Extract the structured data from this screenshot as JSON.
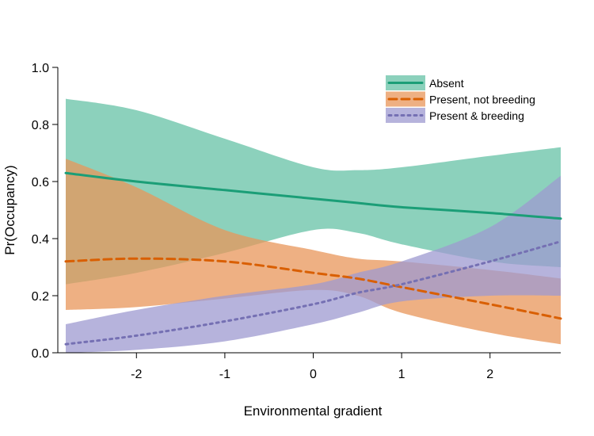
{
  "chart_data": {
    "type": "line",
    "xlabel": "Environmental gradient",
    "ylabel": "Pr(Occupancy)",
    "xlim": [
      -2.8,
      2.8
    ],
    "ylim": [
      0,
      1
    ],
    "x_ticks": [
      -2,
      -1,
      0,
      1,
      2
    ],
    "x_tick_labels": [
      "-2",
      "-1",
      "0",
      "1",
      "2"
    ],
    "y_ticks": [
      0,
      0.2,
      0.4,
      0.6,
      0.8,
      1.0
    ],
    "y_tick_labels": [
      "0.0",
      "0.2",
      "0.4",
      "0.6",
      "0.8",
      "1.0"
    ],
    "grid": false,
    "legend_position": "top-right",
    "x": [
      -2.8,
      -2.0,
      -1.0,
      0.0,
      0.5,
      1.0,
      2.0,
      2.8
    ],
    "series": [
      {
        "name": "Absent",
        "color": "#1b9e77",
        "band_color": "#66c2a5",
        "line_style": "solid",
        "mean": [
          0.63,
          0.6,
          0.57,
          0.54,
          0.525,
          0.51,
          0.49,
          0.47
        ],
        "lower": [
          0.24,
          0.28,
          0.35,
          0.43,
          0.42,
          0.38,
          0.32,
          0.3
        ],
        "upper": [
          0.89,
          0.85,
          0.75,
          0.65,
          0.64,
          0.65,
          0.69,
          0.72
        ]
      },
      {
        "name": "Present, not breeding",
        "color": "#d95f02",
        "band_color": "#e8955a",
        "line_style": "dashed",
        "mean": [
          0.32,
          0.33,
          0.32,
          0.28,
          0.26,
          0.23,
          0.17,
          0.12
        ],
        "lower": [
          0.15,
          0.16,
          0.19,
          0.22,
          0.2,
          0.14,
          0.07,
          0.03
        ],
        "upper": [
          0.68,
          0.58,
          0.43,
          0.36,
          0.33,
          0.32,
          0.29,
          0.26
        ]
      },
      {
        "name": "Present & breeding",
        "color": "#7570b3",
        "band_color": "#9e9ad0",
        "line_style": "dotted",
        "mean": [
          0.03,
          0.06,
          0.11,
          0.17,
          0.21,
          0.24,
          0.32,
          0.39
        ],
        "lower": [
          0.0,
          0.01,
          0.04,
          0.1,
          0.14,
          0.18,
          0.2,
          0.2
        ],
        "upper": [
          0.1,
          0.15,
          0.2,
          0.24,
          0.28,
          0.32,
          0.44,
          0.62
        ]
      }
    ]
  }
}
